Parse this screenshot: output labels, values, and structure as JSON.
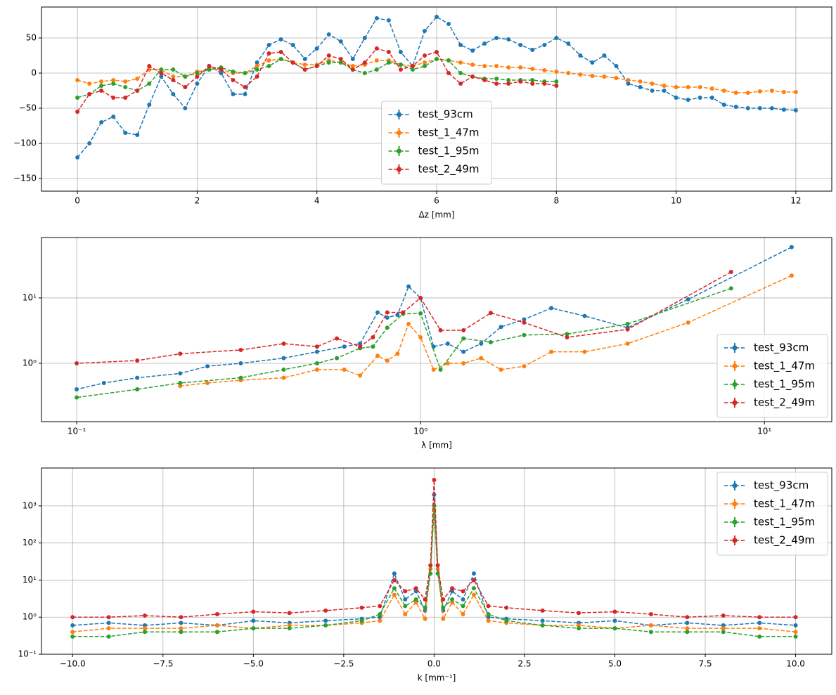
{
  "chart_data": [
    {
      "type": "line",
      "xlabel": "Δz [mm]",
      "xscale": "linear",
      "yscale": "linear",
      "grid": true,
      "legend": "lower center",
      "xlim": [
        -0.6,
        12.6
      ],
      "ylim": [
        -168,
        94
      ],
      "xticks": [
        0,
        2,
        4,
        6,
        8,
        10,
        12
      ],
      "yticks": [
        {
          "value": -150,
          "label": "−150"
        },
        {
          "value": -100,
          "label": "−100"
        },
        {
          "value": -50,
          "label": "−50"
        },
        0,
        50
      ],
      "series": [
        {
          "name": "test_93cm",
          "color": "#1f77b4",
          "x": [
            0,
            0.2,
            0.4,
            0.6,
            0.8,
            1,
            1.2,
            1.4,
            1.6,
            1.8,
            2,
            2.2,
            2.4,
            2.6,
            2.8,
            3,
            3.2,
            3.4,
            3.6,
            3.8,
            4,
            4.2,
            4.4,
            4.6,
            4.8,
            5,
            5.2,
            5.4,
            5.6,
            5.8,
            6,
            6.2,
            6.4,
            6.6,
            6.8,
            7,
            7.2,
            7.4,
            7.6,
            7.8,
            8,
            8.2,
            8.4,
            8.6,
            8.8,
            9,
            9.2,
            9.4,
            9.6,
            9.8,
            10,
            10.2,
            10.4,
            10.6,
            10.8,
            11,
            11.2,
            11.4,
            11.6,
            11.8,
            12
          ],
          "values": [
            -120,
            -100,
            -70,
            -62,
            -85,
            -88,
            -45,
            -5,
            -30,
            -50,
            -15,
            10,
            0,
            -30,
            -30,
            15,
            40,
            48,
            40,
            20,
            35,
            55,
            45,
            20,
            50,
            78,
            75,
            30,
            10,
            60,
            80,
            70,
            40,
            32,
            42,
            50,
            48,
            40,
            33,
            40,
            50,
            42,
            25,
            15,
            25,
            10,
            -15,
            -20,
            -25,
            -25,
            -35,
            -38,
            -35,
            -35,
            -45,
            -48,
            -50,
            -50,
            -50,
            -52,
            -53
          ]
        },
        {
          "name": "test_1_47m",
          "color": "#ff7f0e",
          "x": [
            0,
            0.2,
            0.4,
            0.6,
            0.8,
            1,
            1.2,
            1.4,
            1.6,
            1.8,
            2,
            2.2,
            2.4,
            2.6,
            2.8,
            3,
            3.2,
            3.4,
            3.6,
            3.8,
            4,
            4.2,
            4.4,
            4.6,
            4.8,
            5,
            5.2,
            5.4,
            5.6,
            5.8,
            6,
            6.2,
            6.4,
            6.6,
            6.8,
            7,
            7.2,
            7.4,
            7.6,
            7.8,
            8,
            8.2,
            8.4,
            8.6,
            8.8,
            9,
            9.2,
            9.4,
            9.6,
            9.8,
            10,
            10.2,
            10.4,
            10.6,
            10.8,
            11,
            11.2,
            11.4,
            11.6,
            11.8,
            12
          ],
          "values": [
            -10,
            -15,
            -12,
            -10,
            -12,
            -8,
            5,
            5,
            -5,
            -5,
            2,
            5,
            5,
            0,
            0,
            10,
            18,
            20,
            15,
            12,
            12,
            18,
            15,
            10,
            12,
            18,
            18,
            12,
            10,
            15,
            20,
            18,
            15,
            12,
            10,
            10,
            8,
            8,
            6,
            4,
            2,
            0,
            -2,
            -4,
            -5,
            -7,
            -10,
            -12,
            -15,
            -18,
            -20,
            -20,
            -20,
            -22,
            -25,
            -28,
            -28,
            -26,
            -25,
            -27,
            -27
          ]
        },
        {
          "name": "test_1_95m",
          "color": "#2ca02c",
          "x": [
            0,
            0.2,
            0.4,
            0.6,
            0.8,
            1,
            1.2,
            1.4,
            1.6,
            1.8,
            2,
            2.2,
            2.4,
            2.6,
            2.8,
            3,
            3.2,
            3.4,
            3.6,
            3.8,
            4,
            4.2,
            4.4,
            4.6,
            4.8,
            5,
            5.2,
            5.4,
            5.6,
            5.8,
            6,
            6.2,
            6.4,
            6.6,
            6.8,
            7,
            7.2,
            7.4,
            7.6,
            7.8,
            8
          ],
          "values": [
            -35,
            -30,
            -18,
            -15,
            -20,
            -25,
            -15,
            5,
            5,
            -5,
            0,
            5,
            8,
            2,
            0,
            5,
            10,
            20,
            15,
            5,
            10,
            15,
            15,
            5,
            0,
            5,
            15,
            12,
            5,
            10,
            20,
            18,
            0,
            -5,
            -8,
            -8,
            -10,
            -10,
            -10,
            -12,
            -12
          ]
        },
        {
          "name": "test_2_49m",
          "color": "#d62728",
          "x": [
            0,
            0.2,
            0.4,
            0.6,
            0.8,
            1,
            1.2,
            1.4,
            1.6,
            1.8,
            2,
            2.2,
            2.4,
            2.6,
            2.8,
            3,
            3.2,
            3.4,
            3.6,
            3.8,
            4,
            4.2,
            4.4,
            4.6,
            4.8,
            5,
            5.2,
            5.4,
            5.6,
            5.8,
            6,
            6.2,
            6.4,
            6.6,
            6.8,
            7,
            7.2,
            7.4,
            7.6,
            7.8,
            8
          ],
          "values": [
            -55,
            -30,
            -25,
            -35,
            -35,
            -25,
            10,
            0,
            -10,
            -20,
            -5,
            10,
            5,
            -10,
            -20,
            -5,
            28,
            30,
            15,
            5,
            10,
            25,
            20,
            5,
            15,
            35,
            30,
            5,
            10,
            25,
            30,
            0,
            -15,
            -5,
            -10,
            -15,
            -15,
            -12,
            -15,
            -15,
            -18
          ]
        }
      ]
    },
    {
      "type": "line",
      "xlabel": "λ [mm]",
      "xscale": "log",
      "yscale": "log",
      "grid": true,
      "legend": "lower right",
      "xlim": [
        0.079,
        15.7
      ],
      "ylim": [
        0.128,
        84
      ],
      "xticks": [
        {
          "value": 0.1,
          "label": "10⁻¹"
        },
        {
          "value": 1,
          "label": "10⁰"
        },
        {
          "value": 10,
          "label": "10¹"
        }
      ],
      "yticks": [
        {
          "value": 1,
          "label": "10⁰"
        },
        {
          "value": 10,
          "label": "10¹"
        }
      ],
      "series": [
        {
          "name": "test_93cm",
          "color": "#1f77b4",
          "x": [
            12,
            6,
            4,
            3,
            2.4,
            2,
            1.714,
            1.5,
            1.333,
            1.2,
            1.091,
            1,
            0.923,
            0.857,
            0.8,
            0.75,
            0.667,
            0.6,
            0.5,
            0.4,
            0.3,
            0.24,
            0.2,
            0.15,
            0.12,
            0.1
          ],
          "values": [
            60,
            9.5,
            3.5,
            5.3,
            7,
            4.7,
            3.6,
            2.0,
            1.5,
            2.0,
            1.8,
            10,
            15,
            5.5,
            5,
            6,
            2.0,
            1.8,
            1.5,
            1.2,
            1.0,
            0.9,
            0.7,
            0.6,
            0.5,
            0.4
          ]
        },
        {
          "name": "test_1_47m",
          "color": "#ff7f0e",
          "x": [
            12,
            6,
            4,
            3,
            2.4,
            2,
            1.714,
            1.5,
            1.333,
            1.2,
            1.091,
            1,
            0.923,
            0.857,
            0.8,
            0.75,
            0.667,
            0.6,
            0.5,
            0.4,
            0.3,
            0.24,
            0.2
          ],
          "values": [
            22,
            4.2,
            2.0,
            1.5,
            1.5,
            0.9,
            0.8,
            1.2,
            1.0,
            1.0,
            0.8,
            2.5,
            4,
            1.4,
            1.1,
            1.3,
            0.65,
            0.8,
            0.8,
            0.6,
            0.55,
            0.5,
            0.45
          ]
        },
        {
          "name": "test_1_95m",
          "color": "#2ca02c",
          "x": [
            8,
            4,
            2.667,
            2,
            1.6,
            1.333,
            1.143,
            1,
            0.889,
            0.8,
            0.727,
            0.667,
            0.571,
            0.5,
            0.4,
            0.3,
            0.2,
            0.15,
            0.1
          ],
          "values": [
            14,
            4,
            2.8,
            2.7,
            2.1,
            2.4,
            0.8,
            5.8,
            5.7,
            3.5,
            1.8,
            1.7,
            1.2,
            1.0,
            0.8,
            0.6,
            0.5,
            0.4,
            0.3
          ]
        },
        {
          "name": "test_2_49m",
          "color": "#d62728",
          "x": [
            8,
            4,
            2.667,
            2,
            1.6,
            1.333,
            1.143,
            1,
            0.889,
            0.8,
            0.727,
            0.667,
            0.571,
            0.5,
            0.4,
            0.3,
            0.2,
            0.15,
            0.1
          ],
          "values": [
            25,
            3.3,
            2.5,
            4.2,
            5.9,
            3.2,
            3.2,
            10,
            6,
            6,
            2.5,
            1.8,
            2.4,
            1.8,
            2,
            1.6,
            1.4,
            1.1,
            1.0
          ]
        }
      ]
    },
    {
      "type": "line",
      "xlabel": "k [mm⁻¹]",
      "xscale": "linear",
      "yscale": "log",
      "grid": true,
      "legend": "upper right",
      "xlim": [
        -10.86,
        11.0
      ],
      "ylim": [
        0.1,
        10500
      ],
      "xticks": [
        {
          "value": -10,
          "label": "−10.0"
        },
        {
          "value": -7.5,
          "label": "−7.5"
        },
        {
          "value": -5,
          "label": "−5.0"
        },
        {
          "value": -2.5,
          "label": "−2.5"
        },
        {
          "value": 0,
          "label": "0.0"
        },
        2.5,
        {
          "value": 5,
          "label": "5.0"
        },
        7.5,
        {
          "value": 10,
          "label": "10.0"
        }
      ],
      "yticks": [
        {
          "value": 0.1,
          "label": "10⁻¹"
        },
        {
          "value": 1,
          "label": "10⁰"
        },
        {
          "value": 10,
          "label": "10¹"
        },
        {
          "value": 100,
          "label": "10²"
        },
        {
          "value": 1000,
          "label": "10³"
        }
      ],
      "x": [
        -10,
        -9,
        -8,
        -7,
        -6,
        -5,
        -4,
        -3,
        -2,
        -1.5,
        -1.1,
        -0.8,
        -0.5,
        -0.25,
        -0.1,
        0,
        0.1,
        0.25,
        0.5,
        0.8,
        1.1,
        1.5,
        2,
        3,
        4,
        5,
        6,
        7,
        8,
        9,
        10
      ],
      "series": [
        {
          "name": "test_93cm",
          "color": "#1f77b4",
          "values": [
            0.6,
            0.7,
            0.6,
            0.7,
            0.6,
            0.8,
            0.7,
            0.8,
            0.9,
            1.0,
            15,
            3,
            5,
            1.5,
            25,
            2000,
            25,
            1.5,
            5,
            3,
            15,
            1.0,
            0.9,
            0.8,
            0.7,
            0.8,
            0.6,
            0.7,
            0.6,
            0.7,
            0.6
          ]
        },
        {
          "name": "test_1_47m",
          "color": "#ff7f0e",
          "values": [
            0.4,
            0.5,
            0.5,
            0.5,
            0.6,
            0.5,
            0.6,
            0.6,
            0.7,
            0.8,
            4,
            1.2,
            2.5,
            0.9,
            20,
            800,
            20,
            0.9,
            2.5,
            1.2,
            4,
            0.8,
            0.7,
            0.6,
            0.6,
            0.5,
            0.6,
            0.5,
            0.5,
            0.5,
            0.4
          ]
        },
        {
          "name": "test_1_95m",
          "color": "#2ca02c",
          "values": [
            0.3,
            0.3,
            0.4,
            0.4,
            0.4,
            0.5,
            0.5,
            0.6,
            0.8,
            1.2,
            6,
            2,
            3,
            1.8,
            15,
            1000,
            15,
            1.8,
            3,
            2,
            6,
            1.2,
            0.8,
            0.6,
            0.5,
            0.5,
            0.4,
            0.4,
            0.4,
            0.3,
            0.3
          ]
        },
        {
          "name": "test_2_49m",
          "color": "#d62728",
          "values": [
            1.0,
            1.0,
            1.1,
            1.0,
            1.2,
            1.4,
            1.3,
            1.5,
            1.8,
            2.0,
            10,
            5,
            6,
            3,
            25,
            5000,
            25,
            3,
            6,
            5,
            10,
            2.0,
            1.8,
            1.5,
            1.3,
            1.4,
            1.2,
            1.0,
            1.1,
            1.0,
            1.0
          ]
        }
      ]
    }
  ]
}
